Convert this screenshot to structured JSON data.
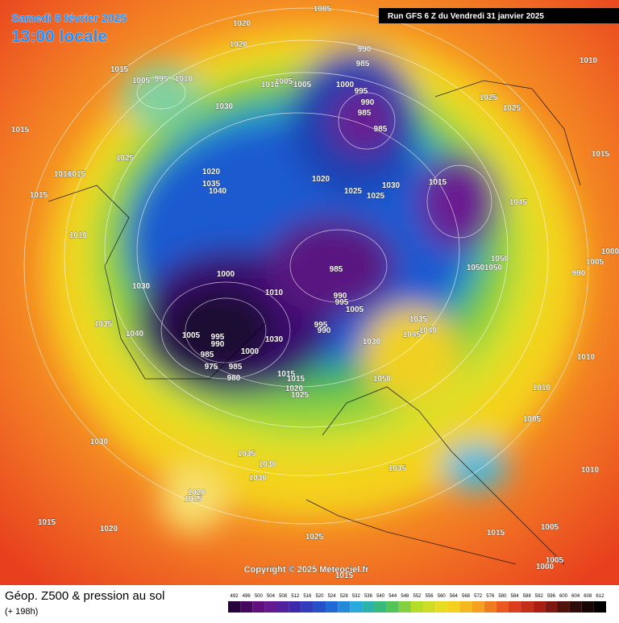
{
  "header": {
    "date": "Samedi 8 février 2025",
    "time": "13:00 locale",
    "run": "Run GFS 6 Z du Vendredi 31 janvier 2025"
  },
  "footer": {
    "title": "Géop. Z500 & pression au sol",
    "lead": "(+ 198h)",
    "copyright": "Copyright © 2025 Meteociel.fr"
  },
  "scale": {
    "ticks": [
      492,
      496,
      500,
      504,
      508,
      512,
      516,
      520,
      524,
      528,
      532,
      536,
      540,
      544,
      548,
      552,
      556,
      560,
      564,
      568,
      572,
      576,
      580,
      584,
      588,
      592,
      596,
      600,
      604,
      608,
      612
    ]
  },
  "isobar_labels": [
    1005,
    1020,
    1020,
    990,
    985,
    1015,
    1005,
    995,
    1010,
    1010,
    1005,
    1005,
    1000,
    995,
    990,
    985,
    985,
    1030,
    1015,
    1025,
    1010,
    1015,
    1020,
    1035,
    1040,
    1020,
    1025,
    1025,
    1030,
    1015,
    1045,
    1015,
    1010,
    1030,
    1000,
    985,
    1010,
    990,
    995,
    1005,
    1035,
    1040,
    1005,
    995,
    990,
    985,
    1030,
    1000,
    995,
    990,
    1035,
    1040,
    1045,
    1030,
    980,
    985,
    975,
    1015,
    1015,
    1020,
    1025,
    1050,
    1010,
    1010,
    1005,
    1050,
    1050,
    1050,
    990,
    1005,
    1000,
    1015,
    1010,
    1025,
    1025,
    1030,
    1035,
    1030,
    1030,
    1035,
    1020,
    1015,
    1015,
    1020,
    1025,
    1015,
    1005,
    1010,
    1005,
    1000,
    1015
  ]
}
